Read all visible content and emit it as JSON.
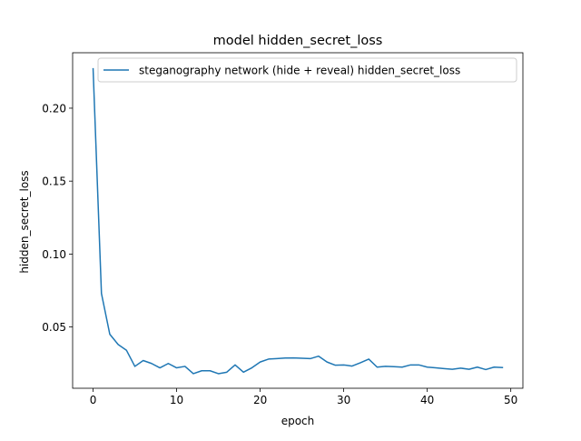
{
  "chart_data": {
    "type": "line",
    "title": "model hidden_secret_loss",
    "xlabel": "epoch",
    "ylabel": "hidden_secret_loss",
    "xlim": [
      -2.45,
      51.45
    ],
    "ylim": [
      0.008,
      0.238
    ],
    "xticks": [
      0,
      10,
      20,
      30,
      40,
      50
    ],
    "xtick_labels": [
      "0",
      "10",
      "20",
      "30",
      "40",
      "50"
    ],
    "yticks": [
      0.05,
      0.1,
      0.15,
      0.2
    ],
    "ytick_labels": [
      "0.05",
      "0.10",
      "0.15",
      "0.20"
    ],
    "grid": false,
    "legend_position": "top-right",
    "series": [
      {
        "name": "steganography network (hide + reveal) hidden_secret_loss",
        "color": "#1f77b4",
        "x": [
          0,
          1,
          2,
          3,
          4,
          5,
          6,
          7,
          8,
          9,
          10,
          11,
          12,
          13,
          14,
          15,
          16,
          17,
          18,
          19,
          20,
          21,
          22,
          23,
          24,
          25,
          26,
          27,
          28,
          29,
          30,
          31,
          32,
          33,
          34,
          35,
          36,
          37,
          38,
          39,
          40,
          41,
          42,
          43,
          44,
          45,
          46,
          47,
          48,
          49
        ],
        "values": [
          0.227,
          0.073,
          0.045,
          0.038,
          0.034,
          0.023,
          0.027,
          0.025,
          0.022,
          0.025,
          0.022,
          0.023,
          0.018,
          0.02,
          0.02,
          0.018,
          0.019,
          0.024,
          0.019,
          0.022,
          0.026,
          0.028,
          0.0283,
          0.0287,
          0.0288,
          0.0286,
          0.0283,
          0.03,
          0.026,
          0.0238,
          0.024,
          0.0232,
          0.0255,
          0.028,
          0.0225,
          0.023,
          0.0228,
          0.0225,
          0.024,
          0.024,
          0.0225,
          0.022,
          0.0215,
          0.021,
          0.0218,
          0.021,
          0.0225,
          0.0208,
          0.0225,
          0.0222
        ]
      }
    ]
  }
}
